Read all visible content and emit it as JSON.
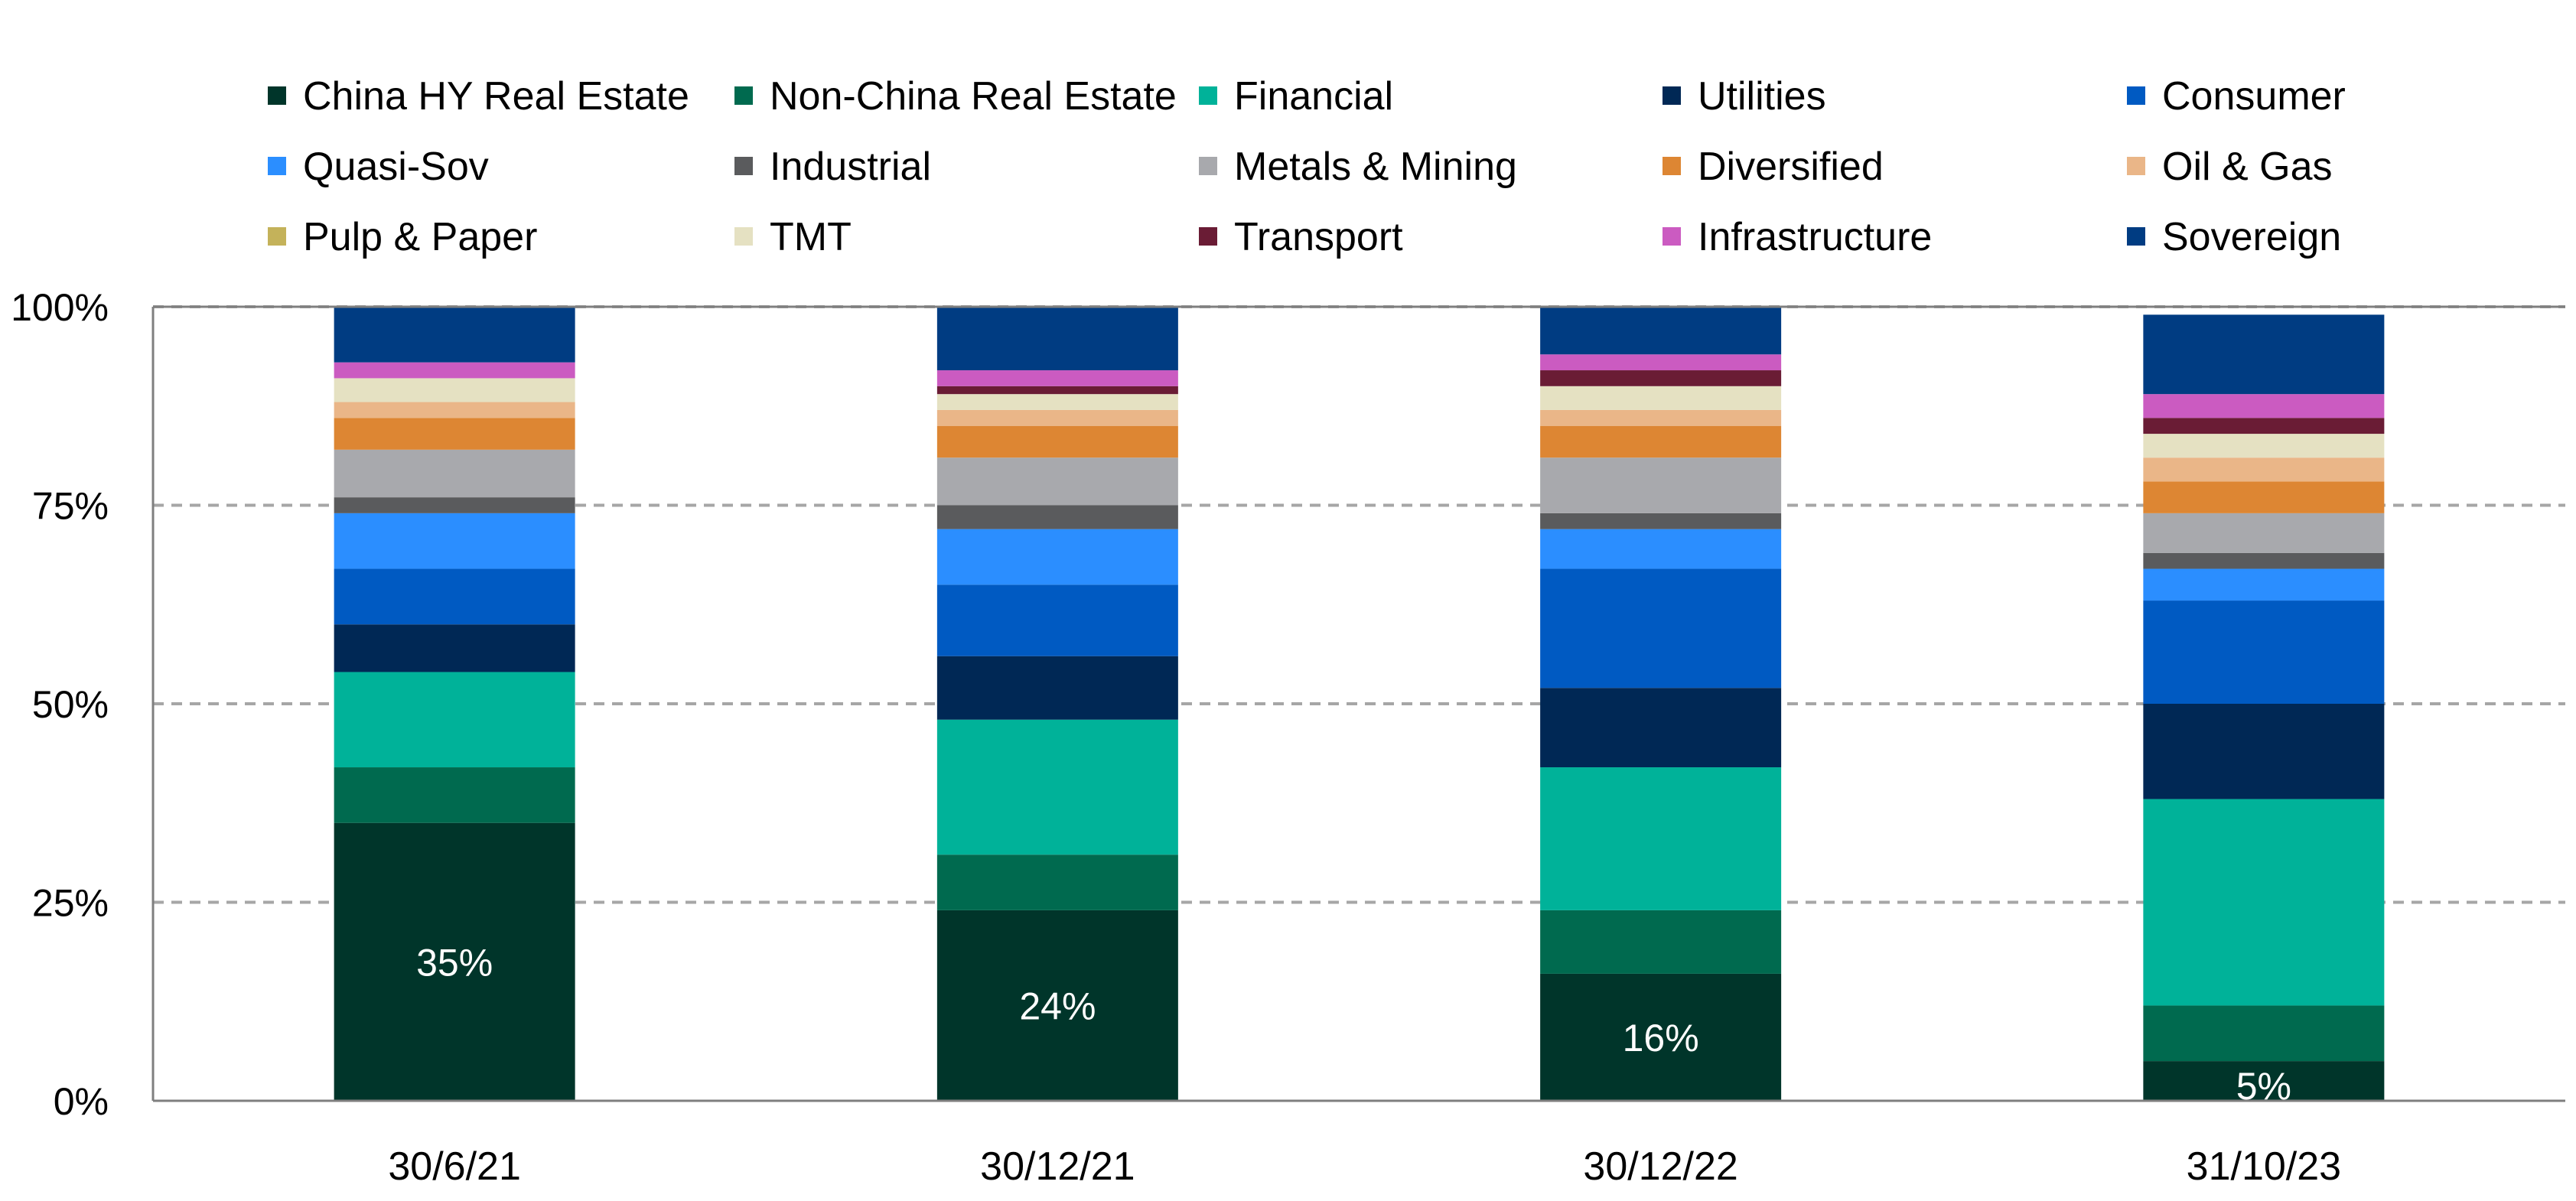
{
  "chart_data": {
    "type": "bar",
    "stacked": true,
    "categories": [
      "30/6/21",
      "30/12/21",
      "30/12/22",
      "31/10/23"
    ],
    "ylim": [
      0,
      100
    ],
    "yticks": [
      "0%",
      "25%",
      "50%",
      "75%",
      "100%"
    ],
    "grid": true,
    "legend_position": "top",
    "series": [
      {
        "name": "China HY Real Estate",
        "color": "#00352a",
        "values": [
          35,
          24,
          16,
          5
        ],
        "labels": [
          "35%",
          "24%",
          "16%",
          "5%"
        ]
      },
      {
        "name": "Non-China Real Estate",
        "color": "#006a4f",
        "values": [
          7,
          7,
          8,
          7
        ]
      },
      {
        "name": "Financial",
        "color": "#00b299",
        "values": [
          12,
          17,
          18,
          26
        ]
      },
      {
        "name": "Utilities",
        "color": "#002855",
        "values": [
          6,
          8,
          10,
          12
        ]
      },
      {
        "name": "Consumer",
        "color": "#005ac2",
        "values": [
          7,
          9,
          15,
          13
        ]
      },
      {
        "name": "Quasi-Sov",
        "color": "#2b8eff",
        "values": [
          7,
          7,
          5,
          4
        ]
      },
      {
        "name": "Industrial",
        "color": "#5a5b5d",
        "values": [
          2,
          3,
          2,
          2
        ]
      },
      {
        "name": "Metals & Mining",
        "color": "#a8a9ad",
        "values": [
          6,
          6,
          7,
          5
        ]
      },
      {
        "name": "Diversified",
        "color": "#dd8633",
        "values": [
          4,
          4,
          4,
          4
        ]
      },
      {
        "name": "Oil & Gas",
        "color": "#eab688",
        "values": [
          2,
          2,
          2,
          3
        ]
      },
      {
        "name": "Pulp & Paper",
        "color": "#c4b25a",
        "values": [
          0,
          0,
          0,
          0
        ]
      },
      {
        "name": "TMT",
        "color": "#e5e1c2",
        "values": [
          3,
          2,
          3,
          3
        ]
      },
      {
        "name": "Transport",
        "color": "#6a1c35",
        "values": [
          0,
          1,
          2,
          2
        ]
      },
      {
        "name": "Infrastructure",
        "color": "#cb5bc1",
        "values": [
          2,
          2,
          2,
          3
        ]
      },
      {
        "name": "Sovereign",
        "color": "#003c82",
        "values": [
          7,
          8,
          6,
          10
        ]
      }
    ]
  }
}
